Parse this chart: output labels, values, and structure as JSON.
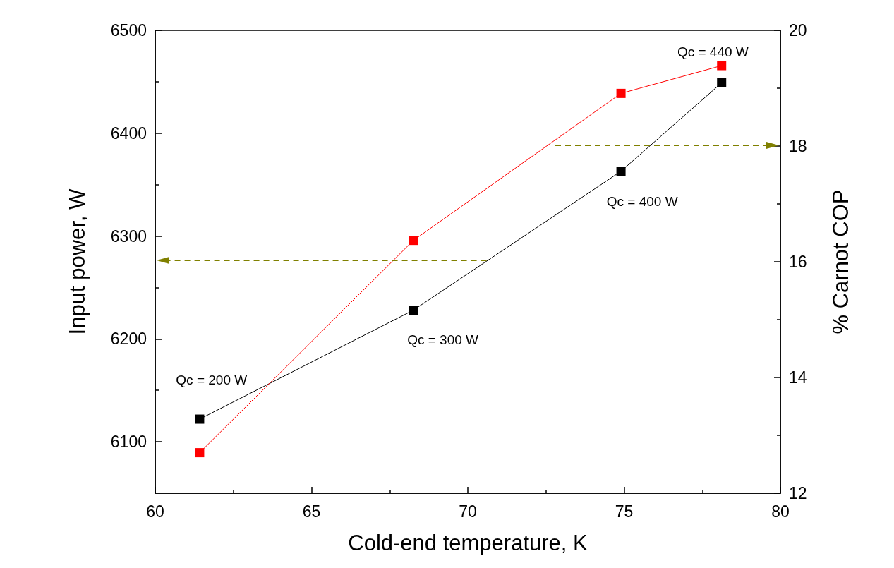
{
  "chart_data": {
    "type": "line",
    "xlabel": "Cold-end temperature, K",
    "ylabel": "Input power, W",
    "y2label": "% Carnot COP",
    "x": [
      61.42,
      68.26,
      74.9,
      78.12
    ],
    "series": [
      {
        "color": "#000000",
        "values": [
          6122,
          6228,
          6363,
          6449
        ]
      },
      {
        "color": "#ff0000",
        "axis": "y2",
        "values": [
          12.7,
          16.37,
          18.91,
          19.39
        ]
      }
    ],
    "xlim": [
      60,
      80
    ],
    "xticks": [
      60,
      65,
      70,
      75,
      80
    ],
    "ylim": [
      6050,
      6500
    ],
    "yticks": [
      6100,
      6200,
      6300,
      6400,
      6500
    ],
    "y2lim": [
      12,
      20
    ],
    "y2ticks": [
      12,
      14,
      16,
      18,
      20
    ],
    "marker": "square",
    "line_style": "solid",
    "grid": false,
    "annotations": [
      "Qc = 200 W",
      "Qc = 300 W",
      "Qc = 400 W",
      "Qc = 440 W"
    ]
  }
}
